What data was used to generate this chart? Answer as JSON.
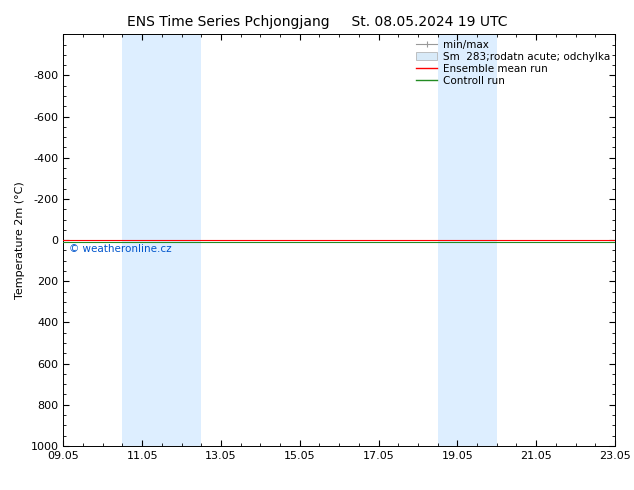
{
  "title_left": "ENS Time Series Pchjongjang",
  "title_right": "St. 08.05.2024 19 UTC",
  "ylabel": "Temperature 2m (°C)",
  "ylim_bottom": 1000,
  "ylim_top": -1000,
  "yticks": [
    -800,
    -600,
    -400,
    -200,
    0,
    200,
    400,
    600,
    800,
    1000
  ],
  "xtick_labels": [
    "09.05",
    "11.05",
    "13.05",
    "15.05",
    "17.05",
    "19.05",
    "21.05",
    "23.05"
  ],
  "xtick_positions_days": [
    0,
    2,
    4,
    6,
    8,
    10,
    12,
    14
  ],
  "shade_bands": [
    {
      "start_day": 1.5,
      "end_day": 3.5
    },
    {
      "start_day": 9.5,
      "end_day": 11.0
    }
  ],
  "shade_color": "#ddeeff",
  "ensemble_mean_color": "#ff0000",
  "control_run_color": "#228B22",
  "watermark": "© weatheronline.cz",
  "watermark_color": "#0055cc",
  "bg_color": "#ffffff",
  "plot_bg_color": "#ffffff",
  "border_color": "#000000",
  "font_size": 8,
  "title_font_size": 10,
  "legend_font_size": 7.5
}
